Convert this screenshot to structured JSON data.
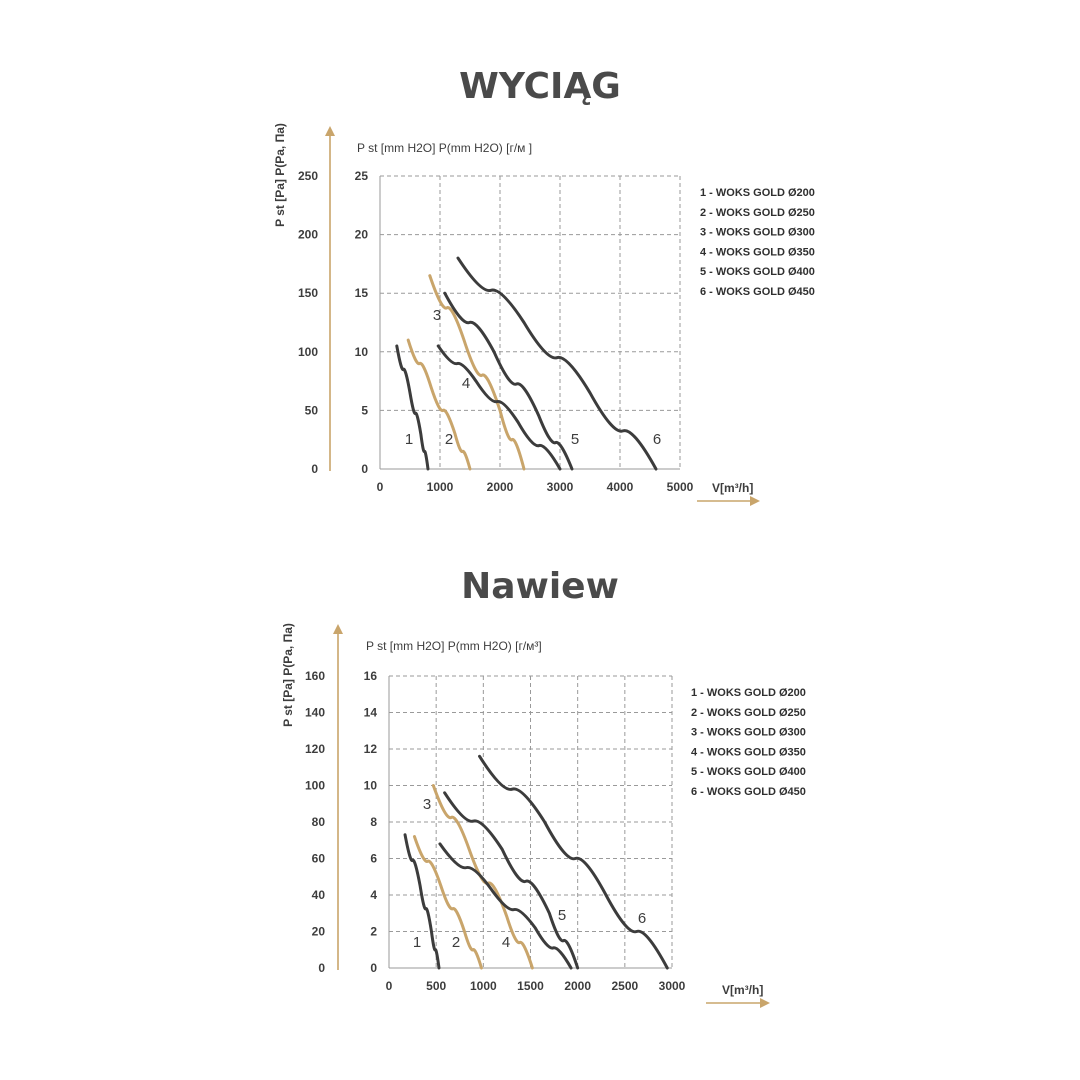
{
  "colors": {
    "dark": "#3c3c3c",
    "gold": "#c9a56b",
    "grid": "#9a9a9a",
    "arrow": "#c9a56b"
  },
  "chart_data": [
    {
      "type": "line",
      "title": "WYCIĄG",
      "left_axis_label": "P st [Pa] P(Pa, Па)",
      "inner_axis_label": "P st [mm H2O] P(mm H2O) [г/м ]",
      "xlabel": "V[m³/h]",
      "xlim": [
        0,
        5000
      ],
      "x_ticks": [
        "0",
        "1000",
        "2000",
        "3000",
        "4000",
        "5000"
      ],
      "ylim": [
        0,
        25
      ],
      "y_ticks": [
        "0",
        "5",
        "10",
        "15",
        "20",
        "25"
      ],
      "y2_ticks": [
        "0",
        "50",
        "100",
        "150",
        "200",
        "250"
      ],
      "series": [
        {
          "name": "1 - WOKS GOLD Ø200",
          "label": "1",
          "color": "dark",
          "x": [
            280,
            500,
            680,
            800
          ],
          "y": [
            10.5,
            6.5,
            3,
            0
          ]
        },
        {
          "name": "2 - WOKS GOLD Ø250",
          "label": "2",
          "color": "gold",
          "x": [
            470,
            850,
            1250,
            1500
          ],
          "y": [
            11,
            7,
            3,
            0
          ]
        },
        {
          "name": "3 - WOKS GOLD Ø300",
          "label": "3",
          "color": "gold",
          "x": [
            830,
            1400,
            2000,
            2400
          ],
          "y": [
            16.5,
            11,
            5,
            0
          ]
        },
        {
          "name": "4 - WOKS GOLD Ø350",
          "label": "4",
          "color": "dark",
          "x": [
            970,
            1600,
            2300,
            3000
          ],
          "y": [
            10.5,
            7.5,
            4,
            0
          ]
        },
        {
          "name": "5 - WOKS GOLD Ø400",
          "label": "5",
          "color": "dark",
          "x": [
            1080,
            1900,
            2650,
            3200
          ],
          "y": [
            15,
            10,
            4.5,
            0
          ]
        },
        {
          "name": "6 - WOKS GOLD Ø450",
          "label": "6",
          "color": "dark",
          "x": [
            1300,
            2400,
            3500,
            4600
          ],
          "y": [
            18,
            12.5,
            6.5,
            0
          ]
        }
      ],
      "legend": [
        "1 - WOKS GOLD Ø200",
        "2 - WOKS GOLD Ø250",
        "3 - WOKS GOLD Ø300",
        "4 - WOKS GOLD Ø350",
        "5 - WOKS GOLD Ø400",
        "6 - WOKS GOLD Ø450"
      ],
      "legend_position": "right",
      "grid": true
    },
    {
      "type": "line",
      "title": "Nawiew",
      "left_axis_label": "P st [Pa] P(Pa, Па)",
      "inner_axis_label": "P st [mm H2O] P(mm H2O) [г/м³]",
      "xlabel": "V[m³/h]",
      "xlim": [
        0,
        3000
      ],
      "x_ticks": [
        "0",
        "500",
        "1000",
        "1500",
        "2000",
        "2500",
        "3000"
      ],
      "ylim": [
        0,
        16
      ],
      "y_ticks": [
        "0",
        "2",
        "4",
        "6",
        "8",
        "10",
        "12",
        "14",
        "16"
      ],
      "y2_ticks": [
        "0",
        "20",
        "40",
        "60",
        "80",
        "100",
        "120",
        "140",
        "160"
      ],
      "series": [
        {
          "name": "1 - WOKS GOLD Ø200",
          "label": "1",
          "color": "dark",
          "x": [
            170,
            330,
            450,
            530
          ],
          "y": [
            7.3,
            4.5,
            2,
            0
          ]
        },
        {
          "name": "2 - WOKS GOLD Ø250",
          "label": "2",
          "color": "gold",
          "x": [
            270,
            550,
            800,
            980
          ],
          "y": [
            7.2,
            4.5,
            2,
            0
          ]
        },
        {
          "name": "3 - WOKS GOLD Ø300",
          "label": "3",
          "color": "gold",
          "x": [
            470,
            850,
            1250,
            1520
          ],
          "y": [
            10,
            6.5,
            2.8,
            0
          ]
        },
        {
          "name": "4 - WOKS GOLD Ø350",
          "label": "4",
          "color": "dark",
          "x": [
            540,
            1100,
            1550,
            1930
          ],
          "y": [
            6.8,
            4.2,
            2.2,
            0
          ]
        },
        {
          "name": "5 - WOKS GOLD Ø400",
          "label": "5",
          "color": "dark",
          "x": [
            590,
            1200,
            1700,
            2000
          ],
          "y": [
            9.6,
            6.5,
            3,
            0
          ]
        },
        {
          "name": "6 - WOKS GOLD Ø450",
          "label": "6",
          "color": "dark",
          "x": [
            960,
            1650,
            2300,
            2950
          ],
          "y": [
            11.6,
            8,
            4,
            0
          ]
        }
      ],
      "legend": [
        "1 - WOKS GOLD Ø200",
        "2 - WOKS GOLD Ø250",
        "3 - WOKS GOLD Ø300",
        "4 - WOKS GOLD Ø350",
        "5 - WOKS GOLD Ø400",
        "6 - WOKS GOLD Ø450"
      ],
      "legend_position": "right",
      "grid": true
    }
  ]
}
